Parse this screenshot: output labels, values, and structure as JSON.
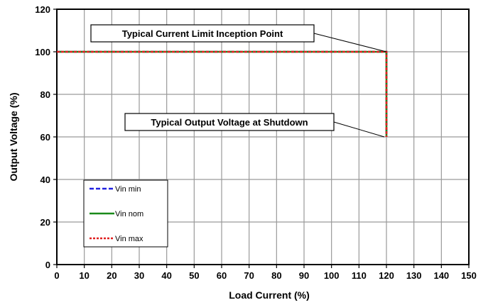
{
  "chart_data": {
    "type": "line",
    "xlabel": "Load Current (%)",
    "ylabel": "Output Voltage (%)",
    "xlim": [
      0,
      150
    ],
    "ylim": [
      0,
      120
    ],
    "xticks": [
      0,
      10,
      20,
      30,
      40,
      50,
      60,
      70,
      80,
      90,
      100,
      110,
      120,
      130,
      140,
      150
    ],
    "yticks": [
      0,
      20,
      40,
      60,
      80,
      100,
      120
    ],
    "grid": true,
    "legend_position": "lower-left",
    "series": [
      {
        "name": "Vin min",
        "color": "#2020e0",
        "style": "dashed",
        "x": [
          0,
          120,
          120
        ],
        "y": [
          100,
          100,
          60
        ]
      },
      {
        "name": "Vin nom",
        "color": "#1a8a1a",
        "style": "solid",
        "x": [
          0,
          120,
          120
        ],
        "y": [
          100,
          100,
          60
        ]
      },
      {
        "name": "Vin max",
        "color": "#e02020",
        "style": "dotted",
        "x": [
          0,
          120,
          120
        ],
        "y": [
          100,
          100,
          60
        ]
      }
    ],
    "annotations": [
      {
        "text": "Typical Current Limit Inception Point",
        "point": [
          120,
          100
        ]
      },
      {
        "text": "Typical Output Voltage at Shutdown",
        "point": [
          120,
          60
        ]
      }
    ]
  }
}
